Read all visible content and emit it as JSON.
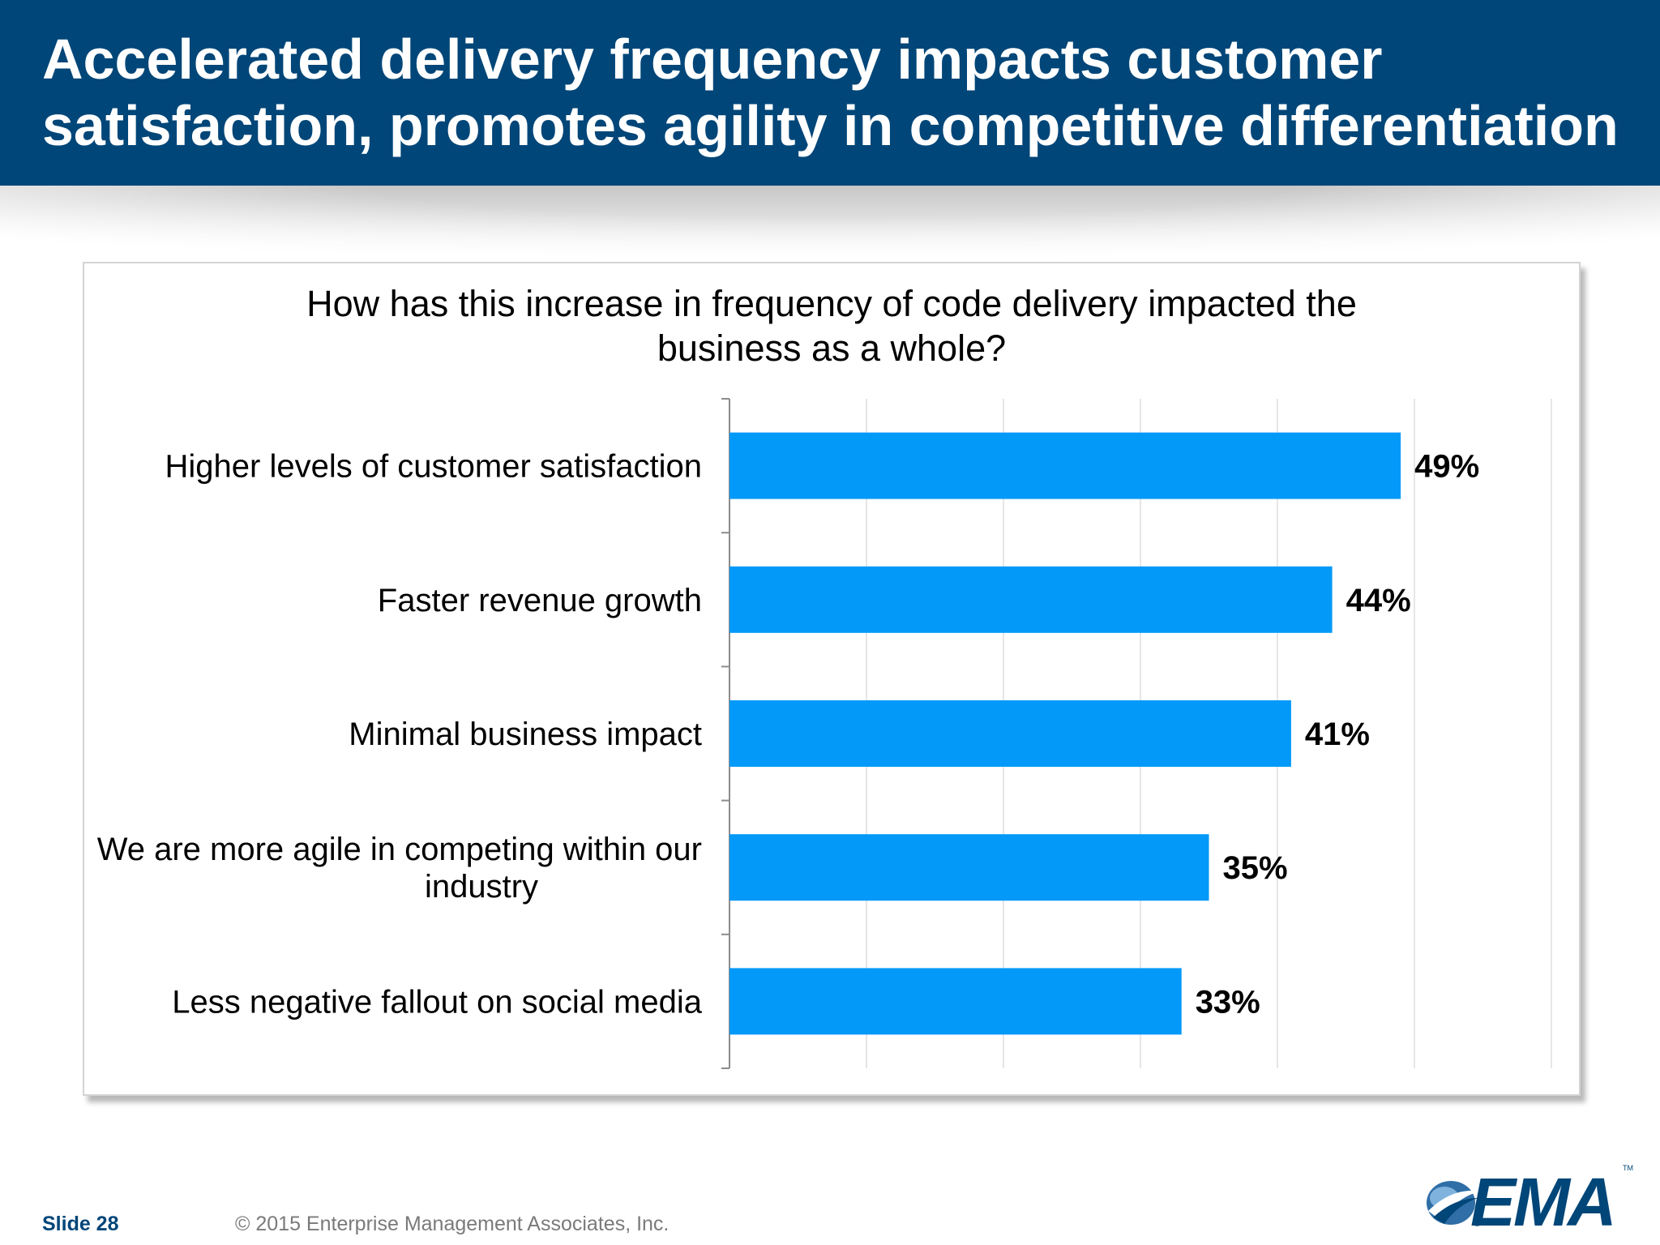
{
  "header": {
    "title": "Accelerated delivery frequency impacts customer satisfaction, promotes agility in competitive differentiation"
  },
  "chart_data": {
    "type": "bar",
    "orientation": "horizontal",
    "title_lines": [
      "How has this increase in frequency of code delivery impacted the",
      "business as a whole?"
    ],
    "categories": [
      [
        "Higher levels of customer satisfaction"
      ],
      [
        "Faster revenue growth"
      ],
      [
        "Minimal business impact"
      ],
      [
        "We are more agile in competing within our",
        "industry"
      ],
      [
        "Less negative fallout on social media"
      ]
    ],
    "values": [
      49,
      44,
      41,
      35,
      33
    ],
    "value_labels": [
      "49%",
      "44%",
      "41%",
      "35%",
      "33%"
    ],
    "xlim": [
      0,
      60
    ],
    "grid": true,
    "bar_color": "#0399f8",
    "legend": "none"
  },
  "footer": {
    "slide": "Slide 28",
    "copyright": "© 2015 Enterprise Management Associates, Inc."
  },
  "logo": {
    "text": "EMA",
    "tm": "TM",
    "registered": "®",
    "icon": "ema-swoosh-logo-icon"
  }
}
